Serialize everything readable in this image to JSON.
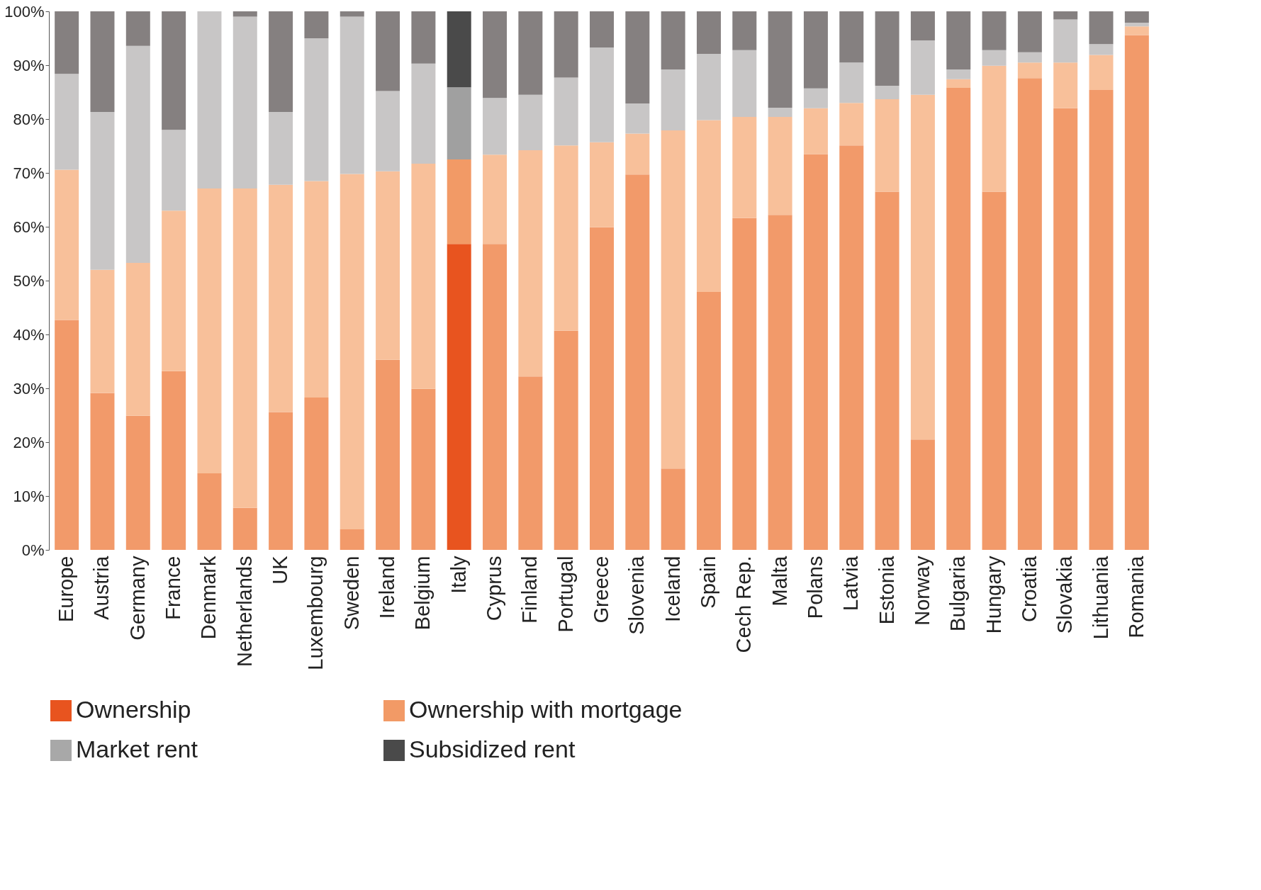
{
  "chart_data": {
    "type": "bar",
    "stacked": true,
    "grid": false,
    "legend": "bottom",
    "categories": [
      "Europe",
      "Austria",
      "Germany",
      "France",
      "Denmark",
      "Netherlands",
      "UK",
      "Luxembourg",
      "Sweden",
      "Ireland",
      "Belgium",
      "Italy",
      "Cyprus",
      "Finland",
      "Portugal",
      "Greece",
      "Slovenia",
      "Iceland",
      "Spain",
      "Cech Rep.",
      "Malta",
      "Polans",
      "Latvia",
      "Estonia",
      "Norway",
      "Bulgaria",
      "Hungary",
      "Croatia",
      "Slovakia",
      "Lithuania",
      "Romania"
    ],
    "ylim": [
      0,
      100
    ],
    "yticks": [
      {
        "value": 0,
        "label": "0%"
      },
      {
        "value": 10,
        "label": "10%"
      },
      {
        "value": 20,
        "label": "20%"
      },
      {
        "value": 30,
        "label": "30%"
      },
      {
        "value": 40,
        "label": "40%"
      },
      {
        "value": 50,
        "label": "50%"
      },
      {
        "value": 60,
        "label": "60%"
      },
      {
        "value": 70,
        "label": "70%"
      },
      {
        "value": 80,
        "label": "80%"
      },
      {
        "value": 90,
        "label": "90%"
      },
      {
        "value": 100,
        "label": "100%"
      }
    ],
    "series": [
      {
        "name": "Ownership",
        "color": "#e8541f",
        "colors": [
          "#f29a6a",
          "#f29a6a",
          "#f29a6a",
          "#f29a6a",
          "#f29a6a",
          "#f29a6a",
          "#f29a6a",
          "#f29a6a",
          "#f29a6a",
          "#f29a6a",
          "#f29a6a",
          "#e8541f",
          "#f29a6a",
          "#f29a6a",
          "#f29a6a",
          "#f29a6a",
          "#f29a6a",
          "#f29a6a",
          "#f29a6a",
          "#f29a6a",
          "#f29a6a",
          "#f29a6a",
          "#f29a6a",
          "#f29a6a",
          "#f29a6a",
          "#f29a6a",
          "#f29a6a",
          "#f29a6a",
          "#f29a6a",
          "#f29a6a",
          "#f29a6a"
        ],
        "values": [
          42.7,
          29.1,
          24.9,
          33.2,
          14.2,
          7.8,
          25.6,
          28.3,
          3.8,
          35.3,
          29.9,
          56.8,
          56.8,
          32.2,
          40.7,
          59.9,
          69.7,
          15.1,
          47.9,
          61.6,
          62.2,
          73.5,
          75.1,
          66.5,
          20.5,
          85.8,
          66.5,
          87.6,
          82.0,
          85.4,
          95.6
        ]
      },
      {
        "name": "Ownership with mortgage",
        "color": "#f29a66",
        "colors": [
          "#f8c09a",
          "#f8c09a",
          "#f8c09a",
          "#f8c09a",
          "#f8c09a",
          "#f8c09a",
          "#f8c09a",
          "#f8c09a",
          "#f8c09a",
          "#f8c09a",
          "#f8c09a",
          "#f29a66",
          "#f8c09a",
          "#f8c09a",
          "#f8c09a",
          "#f8c09a",
          "#f8c09a",
          "#f8c09a",
          "#f8c09a",
          "#f8c09a",
          "#f8c09a",
          "#f8c09a",
          "#f8c09a",
          "#f8c09a",
          "#f8c09a",
          "#f8c09a",
          "#f8c09a",
          "#f8c09a",
          "#f8c09a",
          "#f8c09a",
          "#f8c09a"
        ],
        "values": [
          27.9,
          22.9,
          28.4,
          29.8,
          52.9,
          59.3,
          42.2,
          40.2,
          66.0,
          35.0,
          41.8,
          15.7,
          16.6,
          42.0,
          34.4,
          15.8,
          7.6,
          62.8,
          31.9,
          18.8,
          18.2,
          8.5,
          7.9,
          17.2,
          64.0,
          1.6,
          23.4,
          2.9,
          8.5,
          6.5,
          1.6
        ]
      },
      {
        "name": "Market rent",
        "color": "#a8a8a8",
        "colors": [
          "#c8c6c6",
          "#c8c6c6",
          "#c8c6c6",
          "#c8c6c6",
          "#c8c6c6",
          "#c8c6c6",
          "#c8c6c6",
          "#c8c6c6",
          "#c8c6c6",
          "#c8c6c6",
          "#c8c6c6",
          "#a0a0a0",
          "#c8c6c6",
          "#c8c6c6",
          "#c8c6c6",
          "#c8c6c6",
          "#c8c6c6",
          "#c8c6c6",
          "#c8c6c6",
          "#c8c6c6",
          "#c8c6c6",
          "#c8c6c6",
          "#c8c6c6",
          "#c8c6c6",
          "#c8c6c6",
          "#c8c6c6",
          "#c8c6c6",
          "#c8c6c6",
          "#c8c6c6",
          "#c8c6c6",
          "#c8c6c6"
        ],
        "values": [
          17.8,
          29.3,
          40.3,
          15.0,
          32.9,
          31.9,
          13.5,
          26.5,
          29.2,
          14.9,
          18.6,
          13.4,
          10.5,
          10.3,
          12.6,
          17.6,
          5.6,
          11.3,
          12.3,
          12.4,
          1.7,
          3.7,
          7.5,
          2.5,
          10.1,
          1.8,
          2.9,
          1.9,
          8.0,
          2.0,
          0.7
        ]
      },
      {
        "name": "Subsidized rent",
        "color": "#4a4a4a",
        "colors": [
          "#858080",
          "#858080",
          "#858080",
          "#858080",
          "#858080",
          "#858080",
          "#858080",
          "#858080",
          "#858080",
          "#858080",
          "#858080",
          "#4a4a4a",
          "#858080",
          "#858080",
          "#858080",
          "#858080",
          "#858080",
          "#858080",
          "#858080",
          "#858080",
          "#858080",
          "#858080",
          "#858080",
          "#858080",
          "#858080",
          "#858080",
          "#858080",
          "#858080",
          "#858080",
          "#858080",
          "#858080"
        ],
        "values": [
          11.6,
          18.7,
          6.4,
          22.0,
          0,
          1.0,
          18.7,
          5.0,
          1.0,
          14.8,
          9.7,
          14.1,
          16.1,
          15.5,
          12.3,
          6.7,
          17.1,
          10.8,
          7.9,
          7.2,
          17.9,
          14.3,
          9.5,
          13.8,
          5.4,
          10.8,
          7.2,
          7.6,
          1.5,
          6.1,
          2.1
        ]
      }
    ]
  }
}
